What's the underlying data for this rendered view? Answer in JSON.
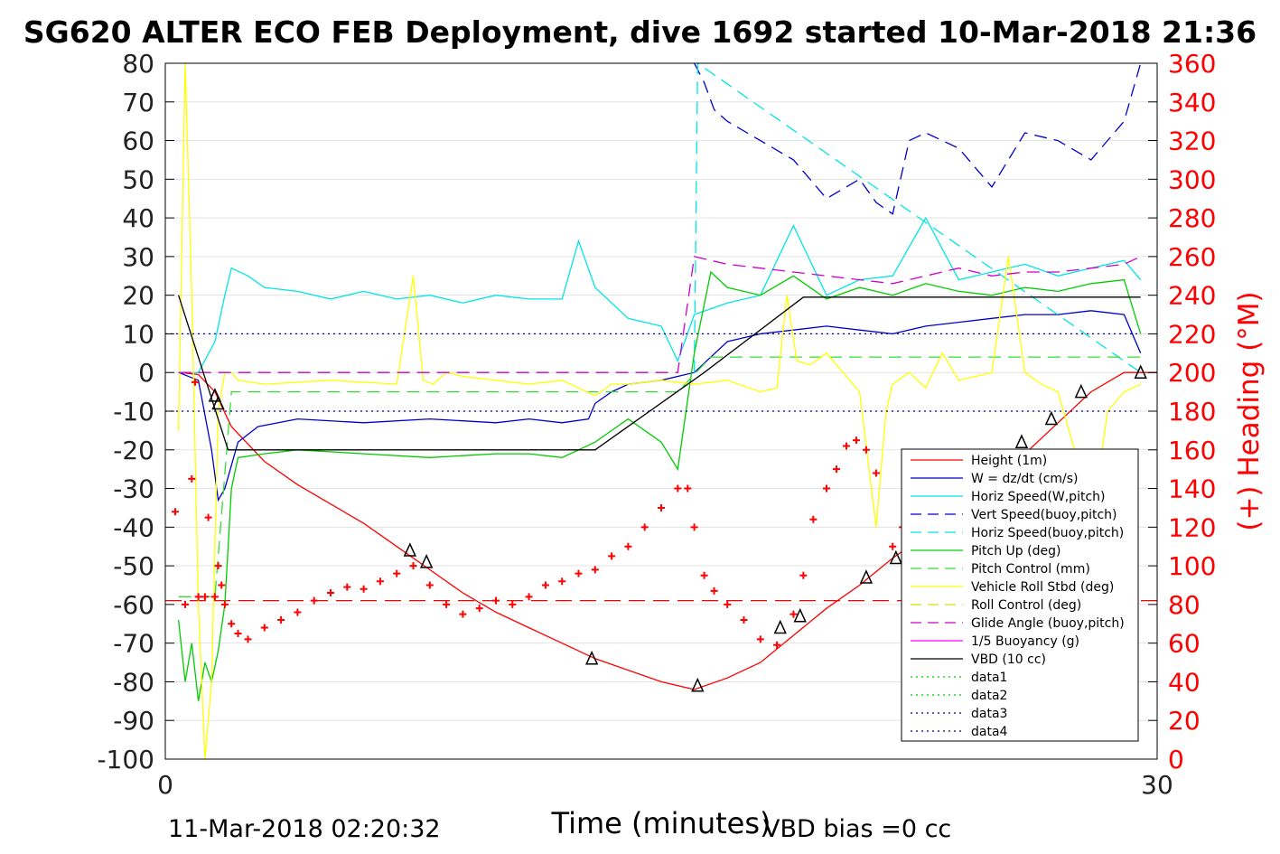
{
  "figure": {
    "title": "SG620 ALTER ECO FEB Deployment, dive 1692 started 10-Mar-2018 21:36",
    "footer_left": "11-Mar-2018 02:20:32",
    "footer_right": "VBD bias =0 cc"
  },
  "chart_data": {
    "type": "line",
    "xlabel": "Time (minutes)",
    "ylabel": "",
    "y2label": "(+) Heading (°M)",
    "xlim": [
      0,
      30
    ],
    "ylim": [
      -100,
      80
    ],
    "y2lim": [
      0,
      360
    ],
    "xticks": [
      "0",
      "30"
    ],
    "yticks": [
      "80",
      "70",
      "60",
      "50",
      "40",
      "30",
      "20",
      "10",
      "0",
      "-10",
      "-20",
      "-30",
      "-40",
      "-50",
      "-60",
      "-70",
      "-80",
      "-90",
      "-100"
    ],
    "y2ticks": [
      "360",
      "340",
      "320",
      "300",
      "280",
      "260",
      "240",
      "220",
      "200",
      "180",
      "160",
      "140",
      "120",
      "100",
      "80",
      "60",
      "40",
      "20",
      "0"
    ],
    "grid": true,
    "legend_position": "bottom-right",
    "colors": {
      "right_axis": "#ff0000",
      "axes": "#000000"
    },
    "series": [
      {
        "name": "Height (1m)",
        "axis": "left",
        "color": "#ff0000",
        "style": "solid",
        "x": [
          0.4,
          1.0,
          1.5,
          2.0,
          3,
          4,
          5,
          6,
          7,
          8,
          9,
          10,
          11,
          12,
          13,
          14,
          15,
          16,
          17,
          18,
          19,
          20,
          21,
          22,
          23,
          24,
          25,
          26,
          27,
          28,
          29,
          30
        ],
        "y": [
          0,
          -0.5,
          -5,
          -14,
          -23,
          -29,
          -34,
          -39,
          -45,
          -51,
          -57,
          -62,
          -66,
          -70,
          -74,
          -77,
          -80,
          -82,
          -79,
          -75,
          -68,
          -61,
          -55,
          -48,
          -42,
          -35,
          -28,
          -21,
          -13,
          -5,
          0,
          0
        ]
      },
      {
        "name": "W = dz/dt (cm/s)",
        "axis": "left",
        "color": "#0000cc",
        "style": "solid",
        "x": [
          0.4,
          1.0,
          1.4,
          1.6,
          1.8,
          2.2,
          2.8,
          4,
          6,
          8,
          10,
          11,
          12,
          12.8,
          13,
          13.5,
          14,
          15,
          16,
          17,
          18,
          19,
          20,
          21,
          22,
          23,
          24,
          25,
          26,
          27,
          28,
          29,
          29.5
        ],
        "y": [
          0,
          -2,
          -20,
          -33,
          -30,
          -18,
          -14,
          -12,
          -13,
          -12,
          -13,
          -12,
          -13,
          -12,
          -8,
          -5,
          -3,
          -2,
          0,
          8,
          10,
          11,
          12,
          11,
          10,
          12,
          13,
          14,
          15,
          15,
          16,
          15,
          5
        ]
      },
      {
        "name": "Horiz Speed(W,pitch)",
        "axis": "left",
        "color": "#00e5e5",
        "style": "solid",
        "x": [
          0.4,
          1.0,
          1.5,
          1.8,
          2.0,
          2.5,
          3,
          4,
          5,
          6,
          7,
          8,
          9,
          10,
          11,
          12,
          12.5,
          13,
          14,
          15,
          15.5,
          16,
          17,
          18,
          19,
          20,
          21,
          22,
          23,
          24,
          25,
          26,
          27,
          28,
          29,
          29.5
        ],
        "y": [
          0,
          0,
          8,
          20,
          27,
          25,
          22,
          21,
          19,
          21,
          19,
          20,
          18,
          20,
          19,
          19,
          34,
          22,
          14,
          12,
          3,
          15,
          18,
          20,
          38,
          20,
          24,
          25,
          40,
          24,
          26,
          28,
          25,
          27,
          29,
          24
        ]
      },
      {
        "name": "Vert Speed(buoy,pitch)",
        "axis": "left",
        "color": "#0000cc",
        "style": "dash",
        "x": [
          16,
          16.3,
          16.6,
          17,
          18,
          19,
          20,
          21,
          21.5,
          22,
          22.5,
          23,
          24,
          25,
          26,
          27,
          28,
          29,
          29.5
        ],
        "y": [
          80,
          75,
          68,
          65,
          60,
          55,
          45,
          50,
          44,
          41,
          60,
          62,
          58,
          48,
          62,
          60,
          55,
          65,
          80
        ]
      },
      {
        "name": "Horiz Speed(buoy,pitch)",
        "axis": "left",
        "color": "#00e5e5",
        "style": "dash",
        "x": [
          16,
          16.1,
          29.5
        ],
        "y": [
          0,
          80,
          0
        ]
      },
      {
        "name": "Pitch Up (deg)",
        "axis": "left",
        "color": "#00cc00",
        "style": "solid",
        "x": [
          0.4,
          0.6,
          0.8,
          1.0,
          1.2,
          1.4,
          1.6,
          1.8,
          2.0,
          2.2,
          3,
          4,
          6,
          8,
          10,
          11,
          12,
          12.5,
          13,
          13.5,
          14,
          15,
          15.5,
          16,
          16.5,
          17,
          18,
          19,
          20,
          21,
          22,
          23,
          24,
          25,
          26,
          27,
          28,
          29,
          29.5
        ],
        "y": [
          -64,
          -80,
          -70,
          -85,
          -75,
          -80,
          -72,
          -60,
          -30,
          -22,
          -21,
          -20,
          -21,
          -22,
          -21,
          -21,
          -22,
          -20,
          -18,
          -15,
          -12,
          -18,
          -25,
          5,
          26,
          22,
          20,
          25,
          19,
          22,
          20,
          23,
          21,
          20,
          22,
          21,
          23,
          24,
          10
        ]
      },
      {
        "name": "Pitch Control (mm)",
        "axis": "left",
        "color": "#33dd33",
        "style": "dash",
        "x": [
          0.4,
          1.5,
          2.0,
          14,
          15.5,
          16.5,
          29.5
        ],
        "y": [
          -58,
          -58,
          -5,
          -5,
          -5,
          4,
          4
        ]
      },
      {
        "name": "Vehicle Roll Stbd (deg)",
        "axis": "left",
        "color": "#ffff00",
        "style": "solid",
        "x": [
          0.4,
          0.6,
          0.8,
          1.0,
          1.2,
          1.4,
          1.6,
          1.8,
          2.0,
          2.2,
          3,
          5,
          7,
          7.5,
          7.8,
          8.1,
          8.5,
          9,
          10,
          11,
          12,
          12.5,
          13,
          13.5,
          14,
          15,
          16,
          17,
          18,
          18.5,
          18.8,
          19.1,
          19.5,
          20,
          21,
          21.5,
          21.8,
          22,
          22.5,
          23,
          23.5,
          24,
          25,
          25.5,
          26,
          26.5,
          27,
          27.5,
          28,
          28.5,
          29,
          29.5
        ],
        "y": [
          -15,
          80,
          20,
          -60,
          -100,
          -80,
          -10,
          0,
          0,
          -2,
          -3,
          -2,
          -3,
          25,
          -2,
          -3,
          0,
          -1,
          -2,
          -3,
          -2,
          -4,
          -6,
          -3,
          -3,
          -2,
          -3,
          -2,
          -5,
          -4,
          20,
          3,
          2,
          5,
          -5,
          -40,
          -10,
          -3,
          0,
          -4,
          5,
          -2,
          0,
          30,
          0,
          -3,
          -5,
          -20,
          -40,
          -10,
          -5,
          -3
        ]
      },
      {
        "name": "Roll Control (deg)",
        "axis": "left",
        "color": "#dddd00",
        "style": "dash",
        "x": [],
        "y": []
      },
      {
        "name": "Glide Angle (buoy,pitch)",
        "axis": "left",
        "color": "#cc00cc",
        "style": "dash",
        "x": [
          0.4,
          15.5,
          16,
          17,
          18,
          19,
          20,
          21,
          22,
          23,
          24,
          25,
          26,
          27,
          28,
          29,
          29.5
        ],
        "y": [
          0,
          0,
          30,
          28,
          27,
          26,
          25,
          24,
          23,
          25,
          27,
          25,
          26,
          26,
          27,
          28,
          30
        ]
      },
      {
        "name": "1/5 Buoyancy (g)",
        "axis": "left",
        "color": "#ff00ff",
        "style": "solid",
        "x": [],
        "y": []
      },
      {
        "name": "VBD (10 cc)",
        "axis": "left",
        "color": "#000000",
        "style": "solid",
        "x": [
          0.4,
          1.9,
          13,
          16.3,
          19.3,
          29.5
        ],
        "y": [
          20,
          -20,
          -20,
          0,
          19.5,
          19.5
        ]
      },
      {
        "name": "data1",
        "axis": "left",
        "color": "#00cc00",
        "style": "dot",
        "x": [],
        "y": []
      },
      {
        "name": "data2",
        "axis": "left",
        "color": "#00cc00",
        "style": "dot",
        "x": [],
        "y": []
      },
      {
        "name": "data3",
        "axis": "left",
        "color": "#000080",
        "style": "dot",
        "x": [
          0,
          29.5
        ],
        "y": [
          10,
          10
        ]
      },
      {
        "name": "data4",
        "axis": "left",
        "color": "#000080",
        "style": "dot",
        "x": [
          0,
          29.5
        ],
        "y": [
          -10,
          -10
        ]
      }
    ],
    "heading_series": {
      "axis": "right",
      "color": "#ff0000",
      "marker": "+",
      "x": [
        0.3,
        0.6,
        0.8,
        0.9,
        1.0,
        1.2,
        1.3,
        1.5,
        1.6,
        1.7,
        1.8,
        2.0,
        2.2,
        2.5,
        3,
        3.5,
        4,
        4.5,
        5,
        5.5,
        6,
        6.5,
        7,
        7.5,
        8,
        8.5,
        9,
        9.5,
        10,
        10.5,
        11,
        11.5,
        12,
        12.5,
        13,
        13.5,
        14,
        14.5,
        15,
        15.5,
        15.8,
        16,
        16.3,
        16.6,
        17,
        17.5,
        18,
        18.5,
        19,
        19.3,
        19.6,
        20,
        20.3,
        20.6,
        20.9,
        21.2,
        21.5,
        22,
        22.3,
        22.6,
        23,
        23.5,
        24,
        24.5,
        25,
        25.3,
        25.6,
        26,
        26.3,
        26.6,
        27,
        27.3,
        27.6,
        28,
        28.3,
        28.6
      ],
      "y": [
        128,
        80,
        145,
        195,
        84,
        84,
        125,
        84,
        100,
        90,
        80,
        70,
        65,
        62,
        68,
        72,
        76,
        82,
        86,
        89,
        88,
        92,
        96,
        100,
        90,
        80,
        75,
        78,
        82,
        80,
        84,
        90,
        92,
        96,
        98,
        105,
        110,
        120,
        130,
        140,
        140,
        120,
        95,
        87,
        80,
        72,
        62,
        59,
        75,
        95,
        124,
        140,
        150,
        162,
        165,
        160,
        148,
        110,
        120,
        95,
        60,
        55,
        48,
        40,
        42,
        60,
        80,
        110,
        125,
        140,
        138,
        128,
        122,
        110,
        75,
        62
      ]
    },
    "markers": {
      "symbol": "triangle",
      "x": [
        1.5,
        1.6,
        7.4,
        7.9,
        12.9,
        16.1,
        18.6,
        19.2,
        21.2,
        22.1,
        23.8,
        24.6,
        25.9,
        26.8,
        27.7,
        29.5
      ],
      "y": [
        -6,
        -8,
        -46,
        -49,
        -74,
        -81,
        -66,
        -63,
        -53,
        -48,
        -36,
        -30,
        -18,
        -12,
        -5,
        0
      ]
    },
    "reference_line": {
      "axis": "right",
      "value": 82,
      "color": "#ff0000",
      "style": "dash"
    }
  }
}
